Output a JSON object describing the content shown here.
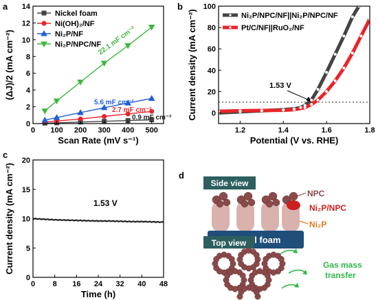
{
  "panels": {
    "a": {
      "label": "a"
    },
    "b": {
      "label": "b"
    },
    "c": {
      "label": "c"
    },
    "d": {
      "label": "d"
    }
  },
  "chart_data": [
    {
      "id": "a",
      "type": "line",
      "xlabel": "Scan Rate (mV s⁻¹)",
      "ylabel": "(ΔJ)/2 (mA cm⁻²)",
      "xlim": [
        0,
        550
      ],
      "ylim": [
        0,
        14
      ],
      "xticks": [
        0,
        100,
        200,
        300,
        400,
        500
      ],
      "yticks": [
        0,
        2,
        4,
        6,
        8,
        10,
        12,
        14
      ],
      "legend_position": "top-left",
      "x": [
        50,
        100,
        200,
        300,
        400,
        500
      ],
      "series": [
        {
          "name": "Nickel foam",
          "color": "#444444",
          "marker": "square",
          "values": [
            0.05,
            0.09,
            0.18,
            0.27,
            0.36,
            0.45
          ]
        },
        {
          "name": "Ni(OH)₂/NF",
          "color": "#e8252a",
          "marker": "circle",
          "values": [
            0.2,
            0.3,
            0.55,
            0.85,
            1.15,
            1.45
          ]
        },
        {
          "name": "Ni₂P/NF",
          "color": "#1f5fd6",
          "marker": "triangle-up",
          "values": [
            0.4,
            0.72,
            1.3,
            1.9,
            2.45,
            3.0
          ]
        },
        {
          "name": "Ni₂P/NPC/NF",
          "color": "#3db83d",
          "marker": "triangle-down",
          "values": [
            1.5,
            2.7,
            4.95,
            7.2,
            9.3,
            11.5
          ]
        }
      ],
      "annotations": [
        {
          "text": "22.1 mF cm⁻²",
          "color": "#3db83d"
        },
        {
          "text": "5.6 mF cm⁻²",
          "color": "#1f5fd6"
        },
        {
          "text": "2.7 mF cm⁻²",
          "color": "#e8252a"
        },
        {
          "text": "0.9 mF cm⁻²",
          "color": "#222222"
        }
      ]
    },
    {
      "id": "b",
      "type": "line",
      "xlabel": "Potential (V vs. RHE)",
      "ylabel": "Current density (mA cm⁻²)",
      "xlim": [
        1.1,
        1.8
      ],
      "ylim": [
        -10,
        100
      ],
      "xticks": [
        1.2,
        1.4,
        1.6,
        1.8
      ],
      "yticks": [
        0,
        20,
        40,
        60,
        80,
        100
      ],
      "legend_position": "top-left",
      "reference_line": {
        "y": 10,
        "style": "dotted"
      },
      "annotation": "1.53 V",
      "series": [
        {
          "name": "Ni₂P/NPC/NF||Ni₂P/NPC/NF",
          "color": "#444444",
          "marker": "circle",
          "x": [
            1.1,
            1.2,
            1.3,
            1.4,
            1.45,
            1.48,
            1.5,
            1.53,
            1.56,
            1.6,
            1.64,
            1.68,
            1.72,
            1.75
          ],
          "values": [
            0.0,
            1.0,
            2.0,
            3.0,
            3.8,
            5.0,
            7.0,
            12.0,
            22.0,
            38.0,
            55.0,
            72.0,
            90.0,
            100.0
          ]
        },
        {
          "name": "Pt/C/NF||RuO₂/NF",
          "color": "#e8252a",
          "marker": "circle",
          "x": [
            1.1,
            1.2,
            1.3,
            1.4,
            1.45,
            1.5,
            1.53,
            1.56,
            1.6,
            1.64,
            1.68,
            1.72,
            1.76,
            1.8
          ],
          "values": [
            1.5,
            2.0,
            2.3,
            2.5,
            3.0,
            5.0,
            8.0,
            12.0,
            20.0,
            30.0,
            42.0,
            56.0,
            72.0,
            88.0
          ]
        }
      ]
    },
    {
      "id": "c",
      "type": "line",
      "xlabel": "Time (h)",
      "ylabel": "Current density (mA cm⁻²)",
      "xlim": [
        0,
        48
      ],
      "ylim": [
        0,
        20
      ],
      "xticks": [
        0,
        8,
        16,
        24,
        32,
        40,
        48
      ],
      "yticks": [
        0,
        5,
        10,
        15,
        20
      ],
      "annotation": "1.53 V",
      "series": [
        {
          "name": "",
          "color": "#222222",
          "marker": "none",
          "x": [
            0,
            4,
            8,
            12,
            16,
            20,
            24,
            28,
            32,
            36,
            40,
            44,
            48
          ],
          "values": [
            10.0,
            9.9,
            9.8,
            9.75,
            9.7,
            9.65,
            9.6,
            9.6,
            9.55,
            9.5,
            9.5,
            9.45,
            9.4
          ]
        }
      ]
    }
  ],
  "schematic": {
    "side_view_label": "Side view",
    "top_view_label": "Top view",
    "npc_label": "NPC",
    "ni2p_npc_label": "Ni₂P/NPC",
    "ni2p_label": "Ni₂P",
    "nickel_foam_label": "Nickel foam",
    "gas_label_line1": "Gas mass",
    "gas_label_line2": "transfer",
    "colors": {
      "npc": "#8b4a4a",
      "ni2p_npc": "#cc1f1f",
      "ni2p": "#e07a1f",
      "foam": "#1e4e79",
      "gas": "#2fb84a",
      "box": "#2e5f5f"
    }
  }
}
